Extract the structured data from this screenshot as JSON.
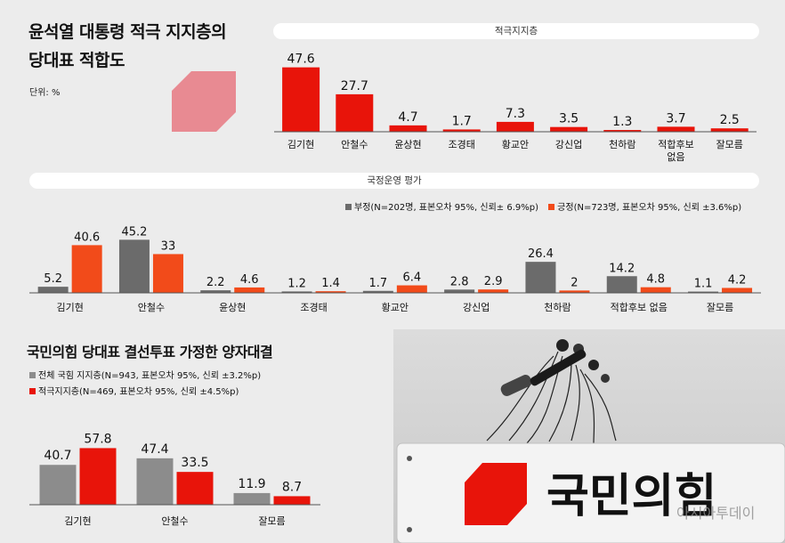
{
  "title": [
    "윤석열 대통령 적극 지지층의",
    "당대표 적합도"
  ],
  "unit": "단위: %",
  "colors": {
    "red": "#e8140a",
    "gray": "#6b6b6b",
    "orange": "#f24b1a",
    "pink": "#e88a92"
  },
  "chart_data": [
    {
      "type": "bar",
      "title": "적극지지층",
      "categories": [
        "김기현",
        "안철수",
        "윤상현",
        "조경태",
        "황교안",
        "강신업",
        "천하람",
        "적합후보 없음",
        "잘모름"
      ],
      "values": [
        47.6,
        27.7,
        4.7,
        1.7,
        7.3,
        3.5,
        1.3,
        3.7,
        2.5
      ],
      "value_labels": [
        "47.6",
        "27.7",
        "4.7",
        "1.7",
        "7.3",
        "3.5",
        "1.3",
        "3.7",
        "2.5"
      ],
      "category_lines": [
        [
          "김기현"
        ],
        [
          "안철수"
        ],
        [
          "윤상현"
        ],
        [
          "조경태"
        ],
        [
          "황교안"
        ],
        [
          "강신업"
        ],
        [
          "천하람"
        ],
        [
          "적합후보",
          "없음"
        ],
        [
          "잘모름"
        ]
      ]
    },
    {
      "type": "bar",
      "title": "국정운영 평가",
      "categories": [
        "김기현",
        "안철수",
        "윤상현",
        "조경태",
        "황교안",
        "강신업",
        "천하람",
        "적합후보 없음",
        "잘모름"
      ],
      "series": [
        {
          "name": "부정(N=202명, 표본오차 95%, 신뢰± 6.9%p)",
          "values": [
            5.2,
            45.2,
            2.2,
            1.2,
            1.7,
            2.8,
            26.4,
            14.2,
            1.1
          ],
          "labels": [
            "5.2",
            "45.2",
            "2.2",
            "1.2",
            "1.7",
            "2.8",
            "26.4",
            "14.2",
            "1.1"
          ],
          "color": "#6b6b6b"
        },
        {
          "name": "긍정(N=723명, 표본오차 95%, 신뢰 ±3.6%p)",
          "values": [
            40.6,
            33,
            4.6,
            1.4,
            6.4,
            2.9,
            2,
            4.8,
            4.2
          ],
          "labels": [
            "40.6",
            "33",
            "4.6",
            "1.4",
            "6.4",
            "2.9",
            "2",
            "4.8",
            "4.2"
          ],
          "color": "#f24b1a"
        }
      ]
    },
    {
      "type": "bar",
      "title": "국민의힘 당대표 결선투표 가정한 양자대결",
      "categories": [
        "김기현",
        "안철수",
        "잘모름"
      ],
      "series": [
        {
          "name": "전체 국힘 지지층(N=943, 표본오차 95%, 신뢰 ±3.2%p)",
          "values": [
            40.7,
            47.4,
            11.9
          ],
          "labels": [
            "40.7",
            "47.4",
            "11.9"
          ],
          "color": "#8c8c8c"
        },
        {
          "name": "적극지지층(N=469, 표본오차 95%, 신뢰 ±4.5%p)",
          "values": [
            57.8,
            33.5,
            8.7
          ],
          "labels": [
            "57.8",
            "33.5",
            "8.7"
          ],
          "color": "#e8140a"
        }
      ]
    }
  ],
  "photo": {
    "sign_text": "국민의힘",
    "watermark": "아시아투데이"
  }
}
